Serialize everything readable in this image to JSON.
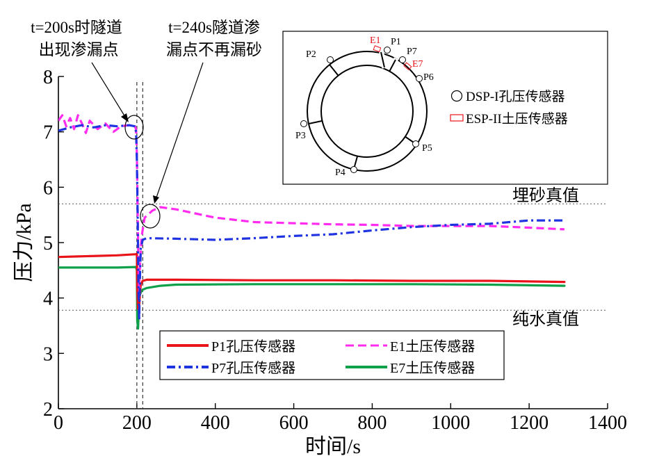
{
  "chart_data": {
    "type": "line",
    "title": "",
    "xlabel": "时间/s",
    "ylabel": "压力/kPa",
    "xlim": [
      0,
      1400
    ],
    "ylim": [
      2,
      8
    ],
    "xticks": [
      0,
      200,
      400,
      600,
      800,
      1000,
      1200,
      1400
    ],
    "yticks": [
      2,
      3,
      4,
      5,
      6,
      7,
      8
    ],
    "grid": false,
    "legend_position": "bottom",
    "colors": {
      "red": "#e8141a",
      "blue": "#1f33e0",
      "magenta": "#ff2cf0",
      "green": "#0fa04a",
      "gray": "#555555"
    },
    "series": [
      {
        "name": "P1孔压传感器",
        "color": "#e8141a",
        "style": "solid",
        "x": [
          0,
          50,
          100,
          150,
          198,
          200,
          201,
          203,
          206,
          208,
          210,
          215,
          225,
          300,
          500,
          700,
          900,
          1100,
          1290
        ],
        "y": [
          4.74,
          4.75,
          4.76,
          4.77,
          4.79,
          4.8,
          4.2,
          3.8,
          3.85,
          4.1,
          4.25,
          4.31,
          4.33,
          4.33,
          4.32,
          4.32,
          4.31,
          4.31,
          4.29
        ]
      },
      {
        "name": "P7孔压传感器",
        "color": "#1f33e0",
        "style": "dashdot",
        "x": [
          0,
          30,
          60,
          90,
          120,
          150,
          180,
          195,
          198,
          200,
          202,
          204,
          206,
          208,
          210,
          215,
          225,
          300,
          400,
          500,
          600,
          700,
          800,
          900,
          1000,
          1100,
          1200,
          1290
        ],
        "y": [
          7.02,
          7.08,
          7.12,
          7.08,
          7.12,
          7.1,
          7.12,
          7.1,
          7.0,
          6.5,
          5.5,
          4.3,
          3.6,
          4.4,
          4.9,
          5.05,
          5.08,
          5.07,
          5.05,
          5.08,
          5.12,
          5.15,
          5.22,
          5.28,
          5.32,
          5.34,
          5.4,
          5.4
        ]
      },
      {
        "name": "E1土压传感器",
        "color": "#ff2cf0",
        "style": "dashed",
        "x": [
          0,
          10,
          20,
          30,
          40,
          50,
          60,
          70,
          80,
          100,
          120,
          140,
          160,
          180,
          195,
          198,
          200,
          202,
          204,
          206,
          208,
          212,
          220,
          240,
          260,
          300,
          400,
          500,
          600,
          700,
          800,
          900,
          1000,
          1100,
          1200,
          1290
        ],
        "y": [
          7.2,
          7.3,
          7.1,
          7.25,
          7.05,
          7.3,
          7.15,
          6.98,
          7.2,
          7.05,
          7.15,
          7.0,
          7.1,
          7.12,
          7.1,
          7.05,
          6.6,
          5.6,
          4.6,
          4.1,
          4.6,
          5.1,
          5.45,
          5.58,
          5.64,
          5.6,
          5.45,
          5.37,
          5.35,
          5.33,
          5.32,
          5.3,
          5.3,
          5.3,
          5.27,
          5.24
        ]
      },
      {
        "name": "E7土压传感器",
        "color": "#0fa04a",
        "style": "solid",
        "x": [
          0,
          50,
          100,
          150,
          198,
          200,
          201,
          203,
          205,
          207,
          210,
          215,
          225,
          260,
          300,
          500,
          700,
          900,
          1100,
          1290
        ],
        "y": [
          4.55,
          4.55,
          4.55,
          4.55,
          4.56,
          4.5,
          3.6,
          3.45,
          3.8,
          4.05,
          4.1,
          4.15,
          4.18,
          4.22,
          4.24,
          4.25,
          4.25,
          4.25,
          4.24,
          4.22
        ]
      }
    ],
    "reference_lines": [
      {
        "label": "埋砂真值",
        "y": 5.7
      },
      {
        "label": "纯水真值",
        "y": 3.78
      }
    ],
    "vertical_lines": [
      200,
      215
    ],
    "annotations": [
      {
        "lines": [
          "t=200s时隧道",
          "出现渗漏点"
        ],
        "target_x": 200,
        "target_y": 7.1
      },
      {
        "lines": [
          "t=240s隧道渗",
          "漏点不再漏砂"
        ],
        "target_x": 240,
        "target_y": 5.5
      }
    ],
    "inset": {
      "sensors_P": [
        "P1",
        "P2",
        "P3",
        "P4",
        "P5",
        "P6",
        "P7"
      ],
      "sensors_E": [
        "E1",
        "E7"
      ],
      "legend": [
        {
          "marker": "circle",
          "label": "DSP-I孔压传感器"
        },
        {
          "marker": "rect",
          "label": "ESP-II土压传感器"
        }
      ]
    }
  }
}
